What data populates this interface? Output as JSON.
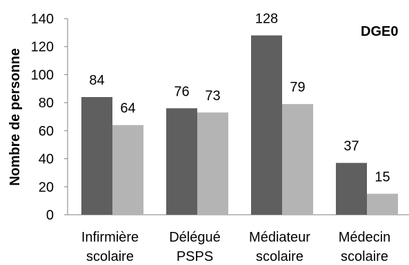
{
  "chart_data": {
    "type": "bar",
    "ylabel": "Nombre de personne",
    "ylim": [
      0,
      140
    ],
    "y_ticks": [
      "0",
      "20",
      "40",
      "60",
      "80",
      "100",
      "120",
      "140"
    ],
    "categories": [
      [
        "Infirmière",
        "scolaire"
      ],
      [
        "Délégué",
        "PSPS"
      ],
      [
        "Médiateur",
        "scolaire"
      ],
      [
        "Médecin",
        "scolaire"
      ]
    ],
    "series": [
      {
        "values": [
          84,
          76,
          128,
          37
        ],
        "color": "#5f5f5f"
      },
      {
        "values": [
          64,
          73,
          79,
          15
        ],
        "color": "#b4b4b4"
      }
    ],
    "annotation": "DGE0",
    "grid": false,
    "legend": "none"
  }
}
